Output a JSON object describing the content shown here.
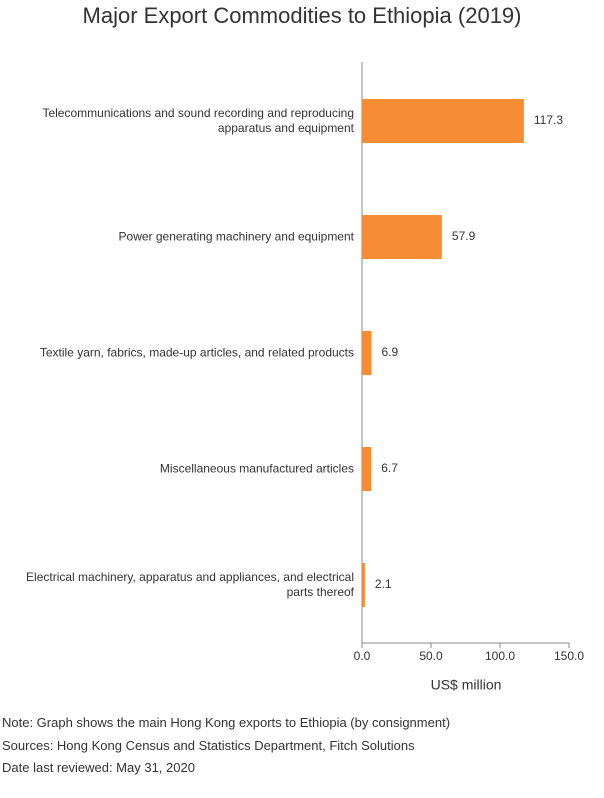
{
  "chart_data": {
    "type": "hbar",
    "title": "Major Export Commodities to Ethiopia (2019)",
    "categories": [
      "Telecommunications and sound recording and reproducing apparatus and equipment",
      "Power generating machinery and equipment",
      "Textile yarn, fabrics, made-up articles, and related products",
      "Miscellaneous manufactured articles",
      "Electrical machinery, apparatus and appliances, and electrical parts thereof"
    ],
    "values": [
      117.3,
      57.9,
      6.9,
      6.7,
      2.1
    ],
    "color": "#f68d35",
    "xlim": [
      0,
      150
    ],
    "xticks": [
      {
        "value": 0,
        "label": "0.0"
      },
      {
        "value": 50,
        "label": "50.0"
      },
      {
        "value": 100,
        "label": "100.0"
      },
      {
        "value": 150,
        "label": "150.0"
      }
    ],
    "xlabel": "US$ million",
    "notes": [
      "Note: Graph shows the main Hong Kong exports to Ethiopia (by consignment)",
      "Sources: Hong Kong Census and Statistics Department, Fitch Solutions",
      "Date last reviewed: May 31, 2020"
    ]
  }
}
